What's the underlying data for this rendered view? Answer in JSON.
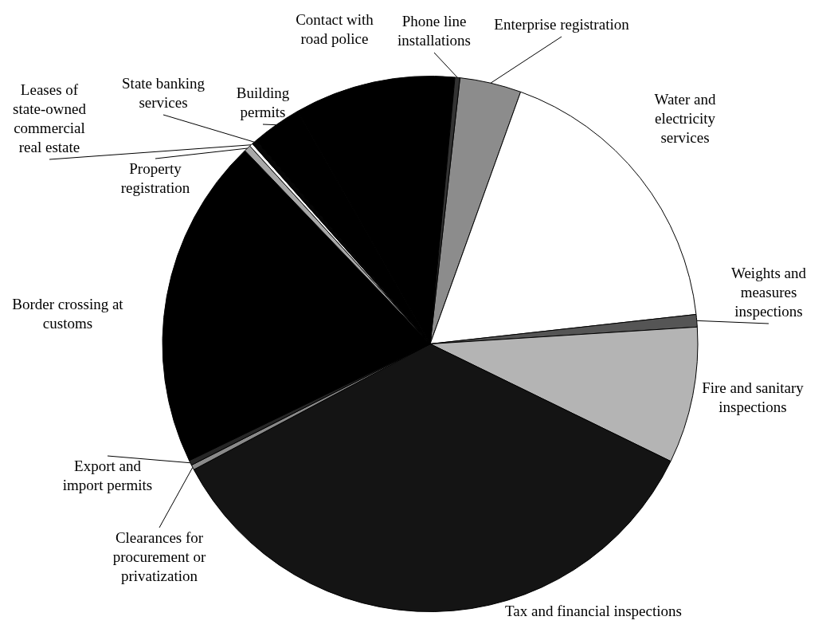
{
  "chart_data": {
    "type": "pie",
    "categories": [
      "Enterprise registration",
      "Water and electricity services",
      "Weights and measures inspections",
      "Fire and sanitary inspections",
      "Tax and financial inspections",
      "Clearances for procurement or privatization",
      "Export and import permits",
      "Border crossing at customs",
      "Property registration",
      "Leases of state-owned commercial real estate",
      "State banking services",
      "Building permits",
      "Contact with road police",
      "Phone line installations"
    ],
    "values": [
      3.7,
      17.7,
      0.75,
      8.2,
      34.9,
      0.3,
      0.3,
      19.95,
      0.4,
      0.2,
      0.3,
      3.0,
      9.7,
      0.3
    ],
    "colors": [
      "#8c8c8c",
      "#ffffff",
      "#555555",
      "#b4b4b4",
      "#141414",
      "#8a8a8a",
      "#262626",
      "#000000",
      "#a8a8a8",
      "#ffffff",
      "#050505",
      "#000000",
      "#000000",
      "#333333"
    ],
    "legend": false
  }
}
